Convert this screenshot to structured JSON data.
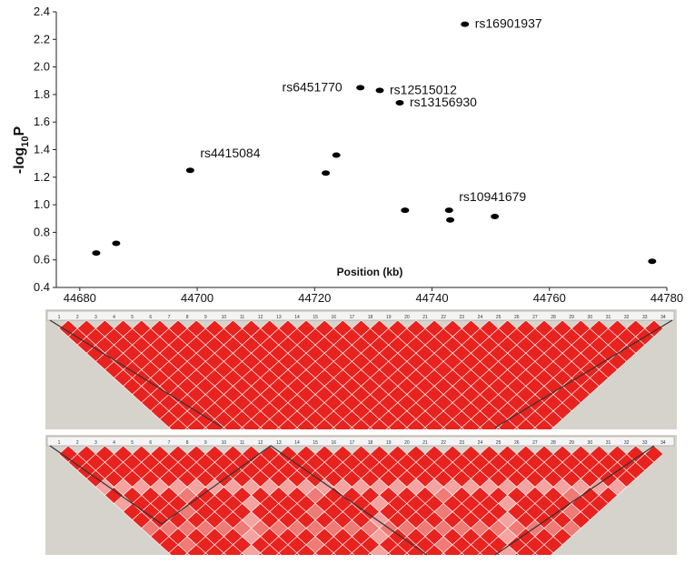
{
  "chart_data": {
    "type": "scatter",
    "xlabel": "Position (kb)",
    "ylabel_parts": [
      "-log",
      "10",
      "P"
    ],
    "x": [
      44682.8,
      44686.2,
      44698.8,
      44721.9,
      44723.7,
      44727.8,
      44731.1,
      44734.5,
      44735.4,
      44745.6,
      44742.9,
      44743.1,
      44750.7,
      44777.5
    ],
    "values": [
      0.65,
      0.72,
      1.25,
      1.23,
      1.36,
      1.85,
      1.83,
      1.74,
      0.96,
      2.31,
      0.96,
      0.89,
      0.915,
      0.59
    ],
    "labels": [
      null,
      null,
      "rs4415084",
      null,
      null,
      "rs6451770",
      "rs12515012",
      "rs13156930",
      null,
      "rs16901937",
      "rs10941679",
      null,
      null,
      null
    ],
    "color": "#000000",
    "xlim": [
      44676,
      44780
    ],
    "xticks": [
      44680,
      44700,
      44720,
      44740,
      44760,
      44780
    ],
    "ylim": [
      0.4,
      2.4
    ],
    "yticks": [
      0.4,
      0.6,
      0.8,
      {
        "value": 1,
        "label": "1.0"
      },
      1.2,
      1.4,
      1.6,
      1.8,
      {
        "value": 2,
        "label": "2.0"
      },
      2.2,
      2.4
    ],
    "ld_marker_numbers": [
      "1",
      "2",
      "3",
      "4",
      "5",
      "6",
      "7",
      "8",
      "9",
      "10",
      "11",
      "12",
      "13",
      "14",
      "15",
      "16",
      "17",
      "18",
      "19",
      "20",
      "21",
      "22",
      "23",
      "24",
      "25",
      "26",
      "27",
      "28",
      "29",
      "30",
      "31",
      "32",
      "33",
      "34"
    ]
  }
}
